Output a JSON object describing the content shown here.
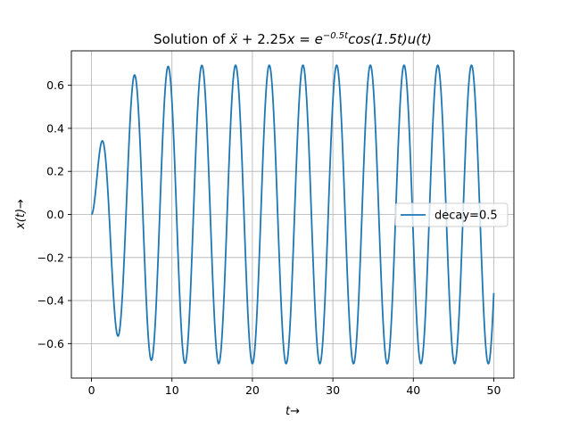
{
  "chart_data": {
    "type": "line",
    "title_prefix": "Solution of ",
    "title_math": {
      "xddot": "ẍ",
      "mid": " + 2.25",
      "x": "x",
      "eq": " = ",
      "e": "e",
      "exp": "−0.5t",
      "rest": "cos(1.5t)u(t)"
    },
    "xlabel": "t→",
    "ylabel": "x(t)→",
    "xlim": [
      -2.5,
      52.5
    ],
    "ylim": [
      -0.76,
      0.76
    ],
    "xticks": [
      0,
      10,
      20,
      30,
      40,
      50
    ],
    "xtick_labels": [
      "0",
      "10",
      "20",
      "30",
      "40",
      "50"
    ],
    "yticks": [
      -0.6,
      -0.4,
      -0.2,
      0.0,
      0.2,
      0.4,
      0.6
    ],
    "ytick_labels": [
      "−0.6",
      "−0.4",
      "−0.2",
      "0.0",
      "0.2",
      "0.4",
      "0.6"
    ],
    "grid": true,
    "legend_position": "center-right",
    "series": [
      {
        "name": "decay=0.5",
        "color": "#1f77b4",
        "equation": "x'' + 2.25 x = exp(-0.5 t) cos(1.5 t), x(0)=0, x'(0)=0",
        "x_range": [
          0,
          50
        ],
        "peaks": [
          {
            "x": 1.3,
            "y": 0.34
          },
          {
            "x": 3.3,
            "y": -0.56
          },
          {
            "x": 5.4,
            "y": 0.65
          },
          {
            "x": 7.5,
            "y": -0.675
          },
          {
            "x": 9.6,
            "y": 0.685
          },
          {
            "x": 50.0,
            "y": -0.37
          }
        ],
        "steady_amplitude": 0.69
      }
    ]
  }
}
